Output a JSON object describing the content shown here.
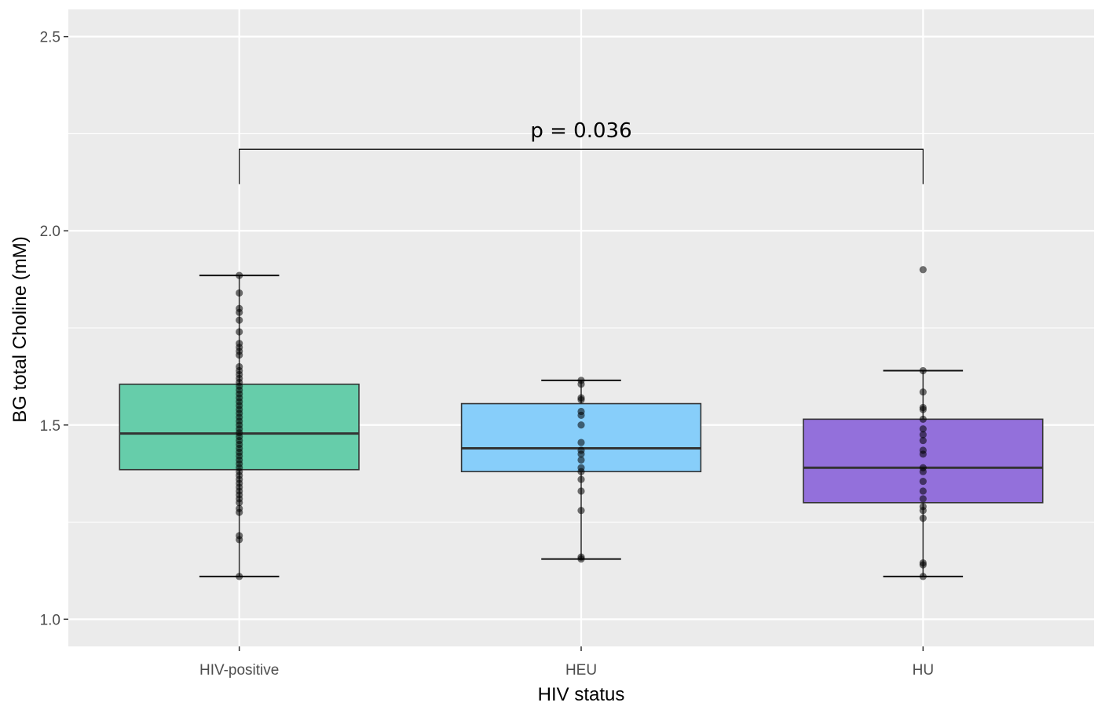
{
  "chart_data": {
    "type": "box",
    "title": "",
    "xlabel": "HIV status",
    "ylabel": "BG total Choline (mM)",
    "ylim": [
      0.93,
      2.57
    ],
    "y_ticks": [
      1.0,
      1.5,
      2.0,
      2.5
    ],
    "y_tick_labels": [
      "1.0",
      "1.5",
      "2.0",
      "2.5"
    ],
    "categories": [
      "HIV-positive",
      "HEU",
      "HU"
    ],
    "colors": {
      "panel": "#ebebeb",
      "grid": "#ffffff"
    },
    "groups": [
      {
        "name": "HIV-positive",
        "fill": "#66cdaa",
        "q1": 1.385,
        "median": 1.478,
        "q3": 1.605,
        "whisker_low": 1.11,
        "whisker_high": 1.885,
        "points": [
          1.885,
          1.84,
          1.8,
          1.79,
          1.77,
          1.74,
          1.71,
          1.7,
          1.69,
          1.68,
          1.65,
          1.64,
          1.63,
          1.62,
          1.61,
          1.6,
          1.59,
          1.58,
          1.57,
          1.56,
          1.55,
          1.54,
          1.53,
          1.52,
          1.51,
          1.5,
          1.49,
          1.48,
          1.47,
          1.46,
          1.45,
          1.44,
          1.43,
          1.42,
          1.41,
          1.4,
          1.39,
          1.38,
          1.37,
          1.36,
          1.35,
          1.34,
          1.33,
          1.32,
          1.31,
          1.3,
          1.285,
          1.275,
          1.215,
          1.205,
          1.11
        ]
      },
      {
        "name": "HEU",
        "fill": "#87cefa",
        "q1": 1.38,
        "median": 1.44,
        "q3": 1.555,
        "whisker_low": 1.155,
        "whisker_high": 1.615,
        "points": [
          1.615,
          1.605,
          1.57,
          1.565,
          1.535,
          1.525,
          1.5,
          1.455,
          1.435,
          1.425,
          1.41,
          1.39,
          1.38,
          1.36,
          1.33,
          1.28,
          1.16,
          1.155
        ]
      },
      {
        "name": "HU",
        "fill": "#9370db",
        "q1": 1.3,
        "median": 1.39,
        "q3": 1.515,
        "whisker_low": 1.11,
        "whisker_high": 1.64,
        "points": [
          1.9,
          1.64,
          1.585,
          1.545,
          1.54,
          1.515,
          1.49,
          1.475,
          1.46,
          1.435,
          1.425,
          1.39,
          1.38,
          1.355,
          1.33,
          1.31,
          1.29,
          1.28,
          1.26,
          1.145,
          1.14,
          1.11
        ]
      }
    ],
    "annotations": [
      {
        "text": "p = 0.036",
        "from": "HIV-positive",
        "to": "HU",
        "y": 2.21,
        "tip_y": 2.12
      }
    ]
  }
}
